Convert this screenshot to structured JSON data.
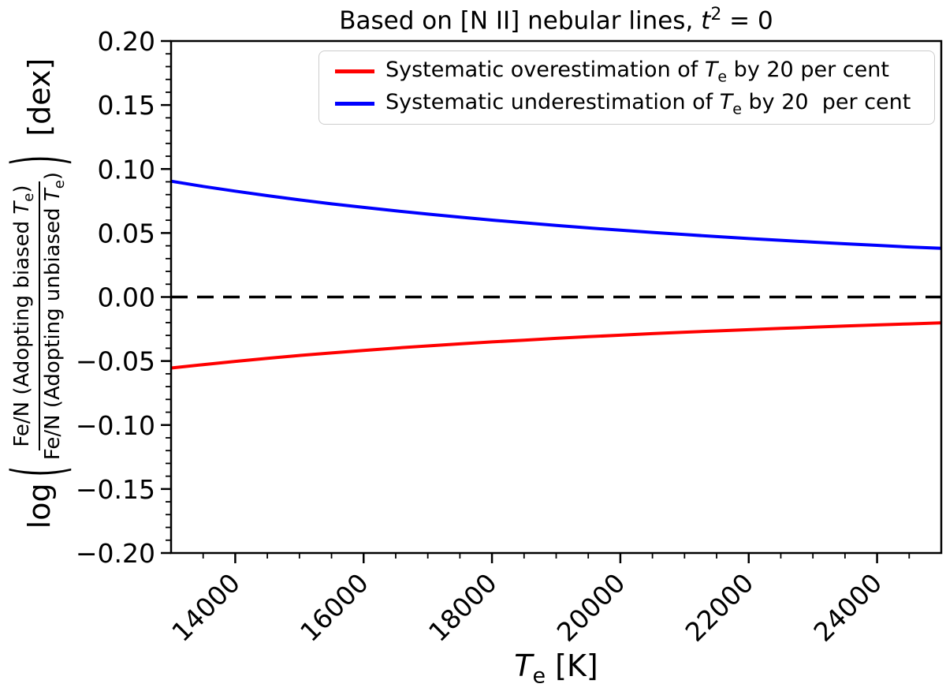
{
  "figure": {
    "background": "#ffffff"
  },
  "title": {
    "pre": "Based on [N II] nebular lines, ",
    "var": "t",
    "sup": "2",
    "post": " = 0"
  },
  "legend": {
    "items": [
      {
        "name": "overestimation",
        "color": "#ff0000",
        "pre": "Systematic overestimation of ",
        "var": "T",
        "sub": "e",
        "post": " by 20 per cent"
      },
      {
        "name": "underestimation",
        "color": "#0000ff",
        "pre": "Systematic underestimation of ",
        "var": "T",
        "sub": "e",
        "post": " by 20  per cent"
      }
    ]
  },
  "xaxis": {
    "label": {
      "var": "T",
      "sub": "e",
      "post": " [K]"
    },
    "tick_labels": [
      "14000",
      "16000",
      "18000",
      "20000",
      "22000",
      "24000"
    ]
  },
  "yaxis": {
    "label": {
      "func": "log",
      "open": "(",
      "num_pre": "Fe/N (Adopting biased ",
      "num_var": "T",
      "num_sub": "e",
      "num_post": ")",
      "den_pre": "Fe/N (Adopting unbiased ",
      "den_var": "T",
      "den_sub": "e",
      "den_post": ")",
      "close": ")",
      "unit": " [dex]"
    },
    "tick_labels": [
      "0.20",
      "0.15",
      "0.10",
      "0.05",
      "0.00",
      "−0.05",
      "−0.10",
      "−0.15",
      "−0.20"
    ]
  },
  "chart_data": {
    "type": "line",
    "title": "Based on [N II] nebular lines, t^2 = 0",
    "xlabel": "T_e [K]",
    "ylabel": "log( Fe/N (Adopting biased T_e) / Fe/N (Adopting unbiased T_e) ) [dex]",
    "xlim": [
      13000,
      25000
    ],
    "ylim": [
      -0.2,
      0.2
    ],
    "xticks": [
      14000,
      16000,
      18000,
      20000,
      22000,
      24000
    ],
    "yticks": [
      0.2,
      0.15,
      0.1,
      0.05,
      0.0,
      -0.05,
      -0.1,
      -0.15,
      -0.2
    ],
    "x_minor_step": 500,
    "y_minor_step": 0.01,
    "grid": false,
    "legend_position": "upper right",
    "x": [
      13000,
      13500,
      14000,
      14500,
      15000,
      15500,
      16000,
      16500,
      17000,
      17500,
      18000,
      18500,
      19000,
      19500,
      20000,
      20500,
      21000,
      21500,
      22000,
      22500,
      23000,
      23500,
      24000,
      24500,
      25000
    ],
    "series": [
      {
        "name": "Systematic overestimation of T_e by 20 per cent",
        "color": "#ff0000",
        "values": [
          -0.0555,
          -0.0528,
          -0.0503,
          -0.0479,
          -0.0457,
          -0.0437,
          -0.0418,
          -0.0399,
          -0.0382,
          -0.0366,
          -0.0351,
          -0.0337,
          -0.0323,
          -0.031,
          -0.0298,
          -0.0286,
          -0.0275,
          -0.0265,
          -0.0255,
          -0.0245,
          -0.0236,
          -0.0227,
          -0.0218,
          -0.021,
          -0.0202
        ]
      },
      {
        "name": "Systematic underestimation of T_e by 20 per cent",
        "color": "#0000ff",
        "values": [
          0.0905,
          0.0864,
          0.0827,
          0.0792,
          0.0759,
          0.0728,
          0.07,
          0.0673,
          0.0648,
          0.0624,
          0.0601,
          0.058,
          0.0559,
          0.054,
          0.0522,
          0.0505,
          0.0488,
          0.0472,
          0.0457,
          0.0443,
          0.0429,
          0.0416,
          0.0404,
          0.0391,
          0.038
        ]
      }
    ],
    "reference_line": {
      "y": 0.0,
      "color": "#000000",
      "style": "dashed"
    }
  }
}
